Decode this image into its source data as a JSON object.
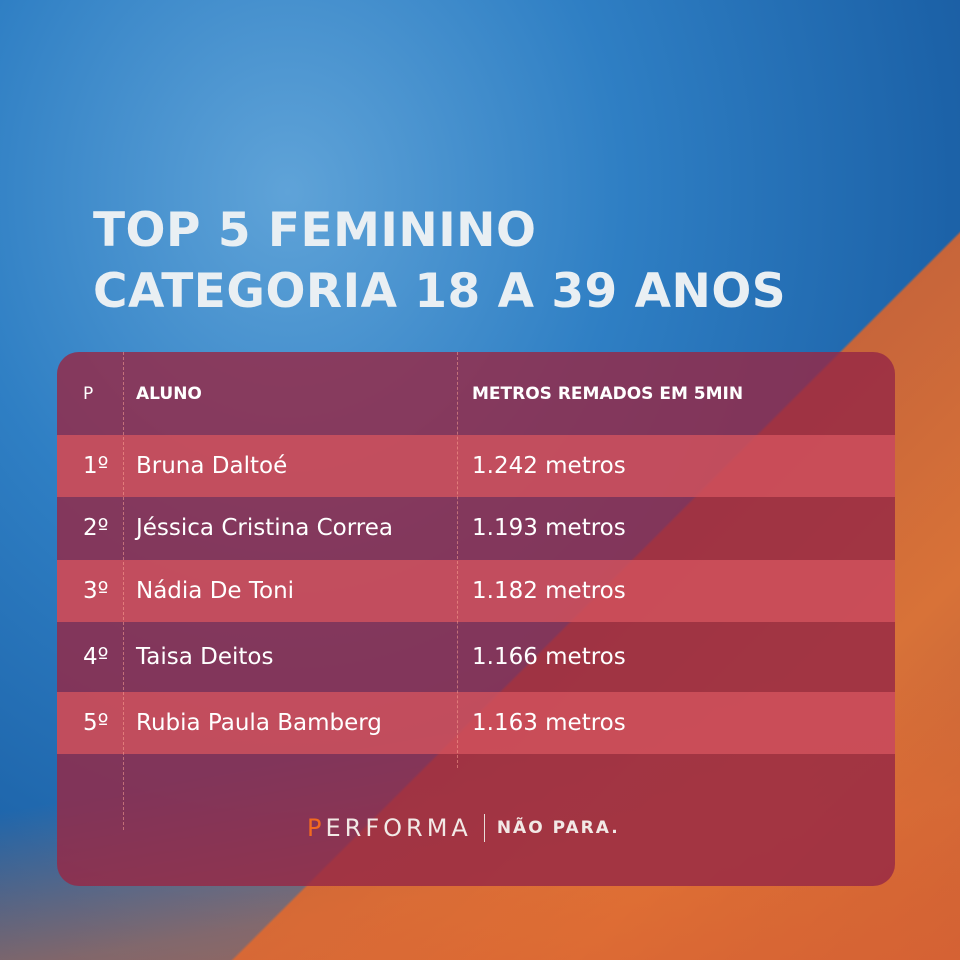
{
  "title": {
    "line1": "TOP 5 FEMININO",
    "line2": "CATEGORIA 18 A 39 ANOS"
  },
  "table": {
    "headers": [
      "P",
      "ALUNO",
      "METROS REMADOS EM 5MIN"
    ],
    "rows": [
      {
        "pos": "1º",
        "name": "Bruna Daltoé",
        "meters": "1.242 metros"
      },
      {
        "pos": "2º",
        "name": "Jéssica Cristina Correa",
        "meters": "1.193 metros"
      },
      {
        "pos": "3º",
        "name": "Nádia De Toni",
        "meters": "1.182 metros"
      },
      {
        "pos": "4º",
        "name": "Taisa Deitos",
        "meters": "1.166 metros"
      },
      {
        "pos": "5º",
        "name": "Rubia Paula Bamberg",
        "meters": "1.163 metros"
      }
    ]
  },
  "logo": {
    "first_letter": "P",
    "rest": "ERFORMA",
    "tagline": "NÃO PARA."
  },
  "colors": {
    "accent": "#f26a1f",
    "panel": "#962846",
    "row_highlight": "#d7555f"
  }
}
